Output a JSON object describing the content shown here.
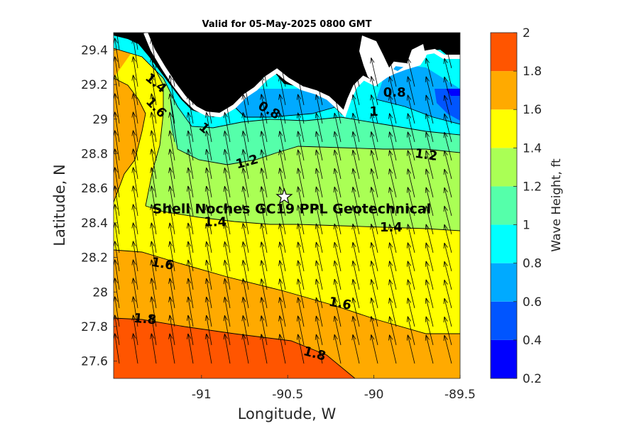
{
  "title": "Valid for 05-May-2025 0800 GMT",
  "xlabel": "Longitude, W",
  "ylabel": "Latitude, N",
  "x_ticks": [
    {
      "value": -91,
      "label": "-91"
    },
    {
      "value": -90.5,
      "label": "-90.5"
    },
    {
      "value": -90,
      "label": "-90"
    },
    {
      "value": -89.5,
      "label": "-89.5"
    }
  ],
  "y_ticks": [
    {
      "value": 27.6,
      "label": "27.6"
    },
    {
      "value": 27.8,
      "label": "27.8"
    },
    {
      "value": 28,
      "label": "28"
    },
    {
      "value": 28.2,
      "label": "28.2"
    },
    {
      "value": 28.4,
      "label": "28.4"
    },
    {
      "value": 28.6,
      "label": "28.6"
    },
    {
      "value": 28.8,
      "label": "28.8"
    },
    {
      "value": 29,
      "label": "29"
    },
    {
      "value": 29.2,
      "label": "29.2"
    },
    {
      "value": 29.4,
      "label": "29.4"
    }
  ],
  "colorbar": {
    "label": "Wave Height, ft",
    "ticks": [
      "0.2",
      "0.4",
      "0.6",
      "0.8",
      "1",
      "1.2",
      "1.4",
      "1.6",
      "1.8",
      "2"
    ],
    "bands": [
      {
        "from": 0.2,
        "to": 0.4,
        "color": "#0000ff"
      },
      {
        "from": 0.4,
        "to": 0.6,
        "color": "#0055ff"
      },
      {
        "from": 0.6,
        "to": 0.8,
        "color": "#00aaff"
      },
      {
        "from": 0.8,
        "to": 1.0,
        "color": "#00ffff"
      },
      {
        "from": 1.0,
        "to": 1.2,
        "color": "#55ffaa"
      },
      {
        "from": 1.2,
        "to": 1.4,
        "color": "#aaff55"
      },
      {
        "from": 1.4,
        "to": 1.6,
        "color": "#ffff00"
      },
      {
        "from": 1.6,
        "to": 1.8,
        "color": "#ffaa00"
      },
      {
        "from": 1.8,
        "to": 2.0,
        "color": "#ff5500"
      }
    ]
  },
  "site": {
    "label": "Shell Noches   GC19 PPL  Geotechnical",
    "lon": -90.52,
    "lat": 28.55,
    "marker": "star-icon"
  },
  "contour_labels": [
    {
      "text": "1.4",
      "lon": -91.28,
      "lat": 29.19,
      "angle": 40
    },
    {
      "text": "1.6",
      "lon": -91.28,
      "lat": 29.05,
      "angle": 45
    },
    {
      "text": "1",
      "lon": -91.0,
      "lat": 28.93,
      "angle": 40
    },
    {
      "text": "0.8",
      "lon": -90.62,
      "lat": 29.03,
      "angle": 30
    },
    {
      "text": "1",
      "lon": -90.0,
      "lat": 29.02,
      "angle": 0
    },
    {
      "text": "0.8",
      "lon": -89.88,
      "lat": 29.13,
      "angle": 0
    },
    {
      "text": "1.2",
      "lon": -90.73,
      "lat": 28.73,
      "angle": -15
    },
    {
      "text": "1.2",
      "lon": -89.7,
      "lat": 28.77,
      "angle": 8
    },
    {
      "text": "1.4",
      "lon": -90.92,
      "lat": 28.38,
      "angle": 0
    },
    {
      "text": "1.4",
      "lon": -89.9,
      "lat": 28.35,
      "angle": 0
    },
    {
      "text": "1.6",
      "lon": -91.23,
      "lat": 28.14,
      "angle": 10
    },
    {
      "text": "1.6",
      "lon": -90.2,
      "lat": 27.91,
      "angle": 10
    },
    {
      "text": "1.8",
      "lon": -91.33,
      "lat": 27.82,
      "angle": 5
    },
    {
      "text": "1.8",
      "lon": -90.35,
      "lat": 27.62,
      "angle": 15
    }
  ]
}
